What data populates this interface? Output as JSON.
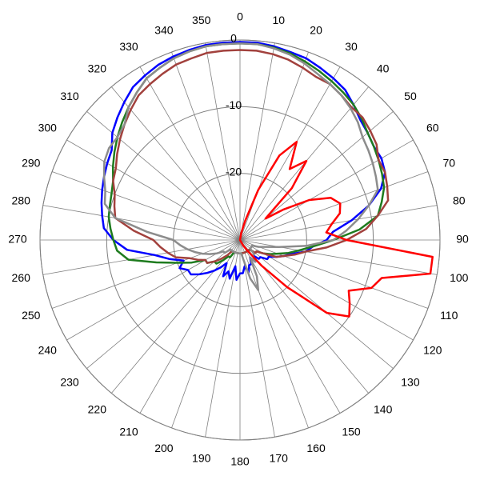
{
  "chart_data": {
    "type": "polar",
    "x": [
      0,
      5,
      10,
      15,
      20,
      25,
      30,
      35,
      40,
      45,
      50,
      55,
      60,
      65,
      70,
      75,
      80,
      85,
      90,
      95,
      100,
      105,
      110,
      115,
      120,
      125,
      130,
      135,
      140,
      145,
      150,
      155,
      160,
      165,
      170,
      175,
      180,
      185,
      190,
      195,
      200,
      205,
      210,
      215,
      220,
      225,
      230,
      235,
      240,
      245,
      250,
      255,
      260,
      265,
      270,
      275,
      280,
      285,
      290,
      295,
      300,
      305,
      310,
      315,
      320,
      325,
      330,
      335,
      340,
      345,
      350,
      355
    ],
    "rlim": [
      -30,
      0
    ],
    "rticks": [
      -20,
      -10,
      0
    ],
    "thetaticks": [
      0,
      10,
      20,
      30,
      40,
      50,
      60,
      70,
      80,
      90,
      100,
      110,
      120,
      130,
      140,
      150,
      160,
      170,
      180,
      190,
      200,
      210,
      220,
      230,
      240,
      250,
      260,
      270,
      280,
      290,
      300,
      310,
      320,
      330,
      340,
      350
    ],
    "grid": true,
    "series": [
      {
        "color": "#0000ff",
        "values": [
          -0.3,
          -0.3,
          -0.5,
          -0.8,
          -1,
          -1.5,
          -2,
          -2.5,
          -3.5,
          -4.5,
          -5,
          -5.5,
          -5.5,
          -6,
          -7.5,
          -10,
          -13,
          -16,
          -17,
          -19,
          -20,
          -22,
          -23,
          -24,
          -25,
          -25,
          -26,
          -26,
          -27,
          -26,
          -27,
          -26,
          -26,
          -25,
          -26,
          -25,
          -25,
          -24,
          -26,
          -24,
          -25,
          -24,
          -26,
          -25,
          -24,
          -23,
          -22,
          -21,
          -21,
          -20,
          -21,
          -19,
          -17,
          -13,
          -11,
          -9.5,
          -9,
          -8.5,
          -8,
          -7.5,
          -7,
          -6.5,
          -5,
          -4,
          -3,
          -2,
          -1.5,
          -1,
          -0.7,
          -0.5,
          -0.3,
          -0.3
        ]
      },
      {
        "color": "#1e7b1e",
        "values": [
          -0.5,
          -0.5,
          -0.7,
          -1,
          -1.5,
          -2,
          -2.5,
          -3,
          -3.5,
          -4.2,
          -5,
          -5.5,
          -6,
          -6.5,
          -7,
          -8,
          -9,
          -12,
          -16,
          -19,
          -21,
          -22.5,
          -24,
          -25,
          -26,
          -27,
          -27,
          -28,
          -28,
          -28,
          -28,
          -28,
          -28,
          -28,
          -28,
          -28,
          -28,
          -28,
          -28,
          -28,
          -28,
          -28,
          -27,
          -27,
          -26,
          -25,
          -25,
          -24,
          -24,
          -22,
          -20,
          -17,
          -13,
          -11.5,
          -11,
          -10.5,
          -10,
          -9.8,
          -9.5,
          -9,
          -8,
          -7,
          -6,
          -5,
          -4,
          -3,
          -2,
          -1.5,
          -1,
          -0.7,
          -0.5,
          -0.5
        ]
      },
      {
        "color": "#a2413d",
        "values": [
          -1.5,
          -1.5,
          -1.7,
          -2,
          -2.5,
          -3,
          -3,
          -3.5,
          -4,
          -4,
          -4.5,
          -5,
          -6,
          -6,
          -6.5,
          -7,
          -9,
          -11,
          -14,
          -17,
          -20,
          -21.5,
          -23,
          -24,
          -26,
          -27,
          -27,
          -28,
          -28,
          -28,
          -28,
          -28,
          -28,
          -28,
          -28,
          -28,
          -28,
          -28,
          -28,
          -28,
          -28,
          -28,
          -28,
          -28,
          -27,
          -26,
          -25,
          -24,
          -24,
          -23,
          -22,
          -20,
          -19,
          -18,
          -17,
          -14,
          -11,
          -10.5,
          -10,
          -9,
          -8.5,
          -7.5,
          -6.5,
          -5.5,
          -4.5,
          -3.5,
          -3,
          -2.5,
          -2,
          -1.8,
          -1.5,
          -1.5
        ]
      },
      {
        "color": "#8c8c8c",
        "values": [
          -0.5,
          -0.5,
          -0.8,
          -1.2,
          -1.8,
          -2.5,
          -3,
          -3.5,
          -4.2,
          -5,
          -6,
          -6.5,
          -7,
          -7.5,
          -8,
          -10,
          -12,
          -14,
          -16,
          -20,
          -24,
          -26,
          -27,
          -28,
          -28,
          -28,
          -28,
          -27,
          -27,
          -26,
          -27,
          -24,
          -22,
          -24,
          -27,
          -28,
          -28,
          -28,
          -28,
          -28,
          -28,
          -28,
          -28,
          -28,
          -28,
          -28,
          -27,
          -27,
          -26,
          -25,
          -24,
          -23,
          -22,
          -21,
          -20,
          -16,
          -11,
          -9,
          -8.5,
          -7.5,
          -6.5,
          -6,
          -6,
          -5.5,
          -4,
          -3,
          -2,
          -1.5,
          -1,
          -0.7,
          -0.5,
          -0.5
        ]
      },
      {
        "color": "#ff0000",
        "values": [
          -30,
          -30,
          -29,
          -27,
          -22,
          -16,
          -13,
          -17,
          -14.5,
          -19,
          -25,
          -22,
          -18,
          -15,
          -14,
          -14.5,
          -16,
          -17,
          -14,
          -1,
          -1,
          -8,
          -9,
          -12,
          -11,
          -10,
          -13,
          -20,
          -25,
          -28,
          -29,
          -30,
          -30,
          -30,
          -30,
          -30,
          -30,
          -30,
          -30,
          -30,
          -30,
          -30,
          -30,
          -30,
          -30,
          -30,
          -30,
          -30,
          -30,
          -30,
          -30,
          -30,
          -30,
          -30,
          -30,
          -30,
          -30,
          -30,
          -30,
          -30,
          -30,
          -30,
          -30,
          -30,
          -30,
          -30,
          -30,
          -30,
          -30,
          -30,
          -30,
          -30
        ]
      }
    ]
  }
}
